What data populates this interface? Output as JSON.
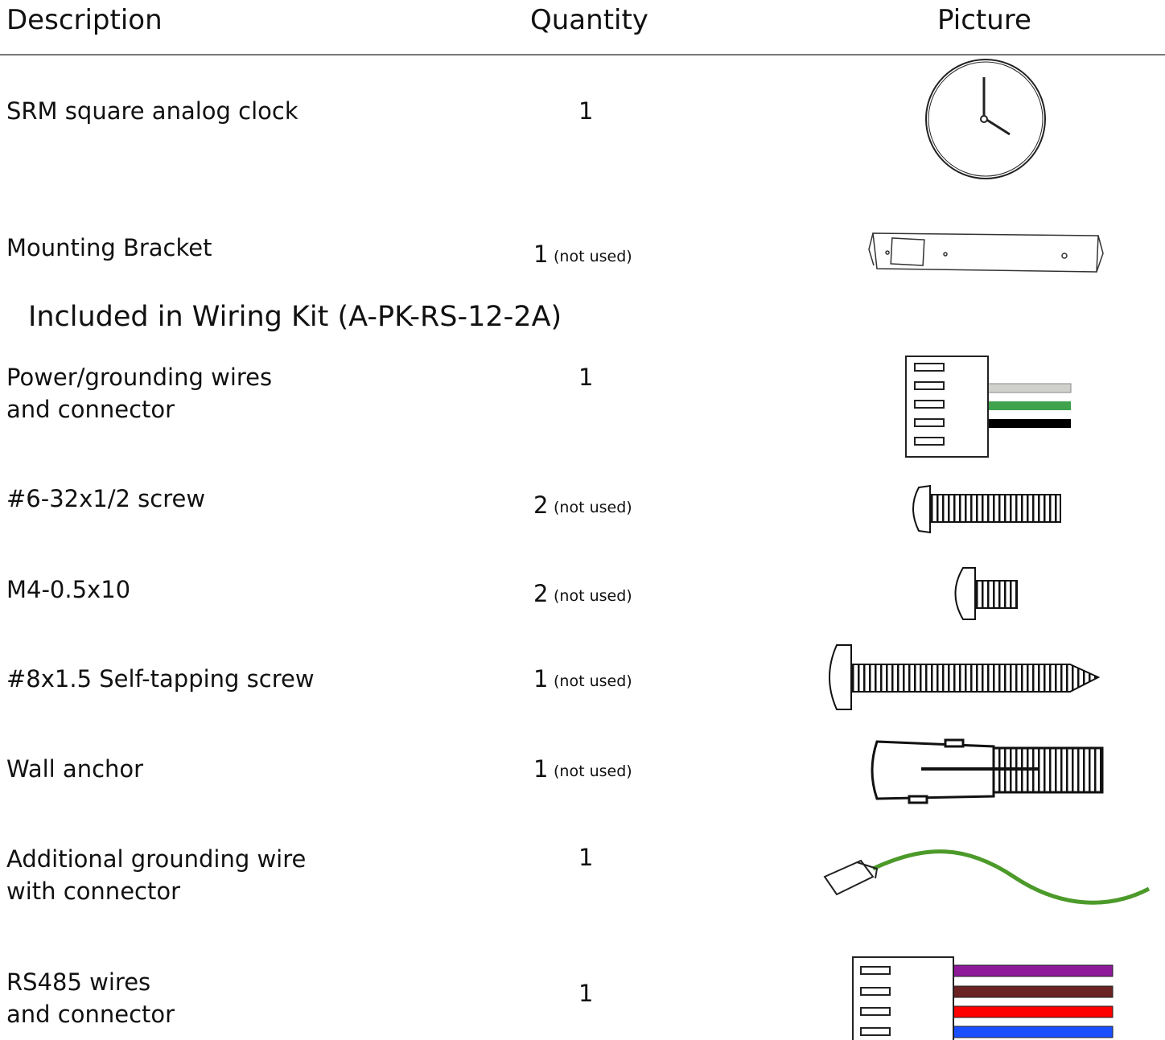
{
  "table": {
    "columns": [
      "Description",
      "Quantity",
      "Picture"
    ],
    "rows": [
      {
        "description": [
          "SRM square analog clock"
        ],
        "quantity": "1"
      },
      {
        "description": [
          "Mounting Bracket"
        ],
        "quantity": "1",
        "note": "(not used)"
      }
    ]
  },
  "section": {
    "title": "Included in Wiring Kit (A-PK-RS-12-2A)",
    "rows": [
      {
        "description": [
          "Power/grounding wires",
          "and connector"
        ],
        "quantity": "1"
      },
      {
        "description": [
          "#6-32x1/2 screw"
        ],
        "quantity": "2",
        "note": "(not used)"
      },
      {
        "description": [
          "M4-0.5x10"
        ],
        "quantity": "2",
        "note": "(not used)"
      },
      {
        "description": [
          "#8x1.5 Self-tapping screw"
        ],
        "quantity": "1",
        "note": "(not used)"
      },
      {
        "description": [
          "Wall anchor"
        ],
        "quantity": "1",
        "note": "(not used)"
      },
      {
        "description": [
          "Additional grounding wire",
          "with connector"
        ],
        "quantity": "1"
      },
      {
        "description": [
          "RS485 wires",
          "and connector"
        ],
        "quantity": "1"
      }
    ]
  }
}
